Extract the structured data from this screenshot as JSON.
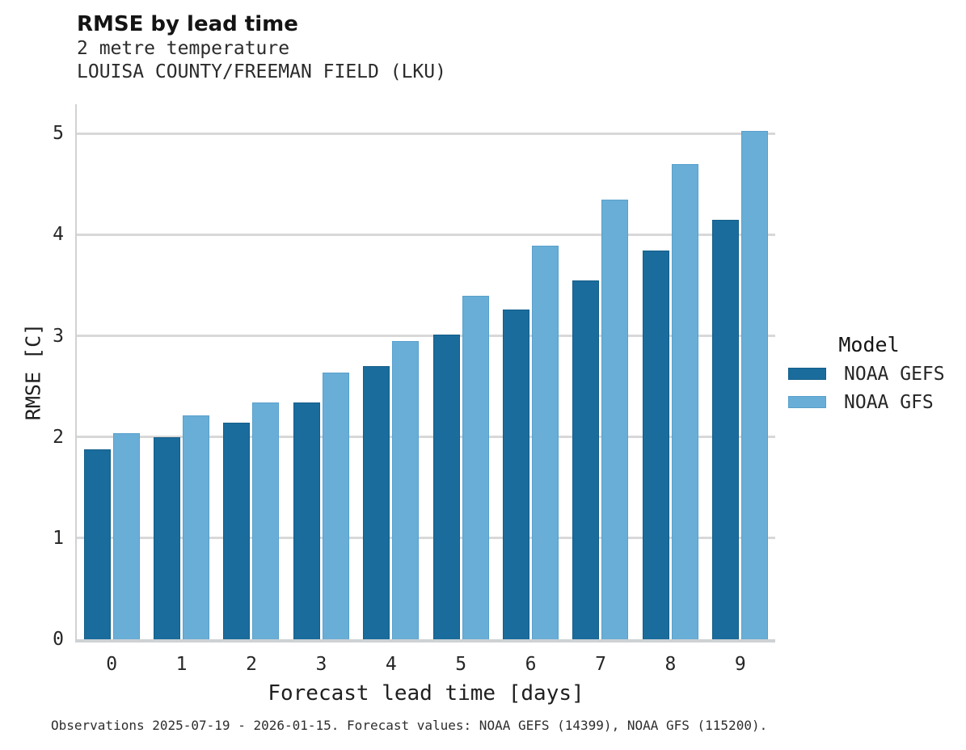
{
  "header": {
    "title": "RMSE by lead time",
    "subtitle": "2 metre temperature",
    "station": "LOUISA COUNTY/FREEMAN FIELD (LKU)"
  },
  "chart_data": {
    "type": "bar",
    "title": "RMSE by lead time",
    "subtitle": "2 metre temperature",
    "station": "LOUISA COUNTY/FREEMAN FIELD (LKU)",
    "categories": [
      0,
      1,
      2,
      3,
      4,
      5,
      6,
      7,
      8,
      9
    ],
    "series": [
      {
        "name": "NOAA GEFS",
        "color": "#1a6c9c",
        "edge_color": "#135e8a",
        "values": [
          1.88,
          2.0,
          2.14,
          2.34,
          2.7,
          3.01,
          3.26,
          3.55,
          3.84,
          4.15
        ]
      },
      {
        "name": "NOAA GFS",
        "color": "#69aed7",
        "edge_color": "#58a0cc",
        "values": [
          2.04,
          2.21,
          2.34,
          2.64,
          2.95,
          3.4,
          3.89,
          4.35,
          4.7,
          5.03
        ]
      }
    ],
    "xlabel": "Forecast lead time [days]",
    "ylabel": "RMSE [C]",
    "ylim": [
      0,
      5.29
    ],
    "yticks": [
      0,
      1,
      2,
      3,
      4,
      5
    ],
    "grid": true,
    "grid_color": "#d8d8d8",
    "legend_title": "Model",
    "legend_position": "right"
  },
  "legend": {
    "title": "Model",
    "items": [
      {
        "label": "NOAA GEFS",
        "color": "#1a6c9c",
        "edge_color": "#135e8a"
      },
      {
        "label": "NOAA GFS",
        "color": "#69aed7",
        "edge_color": "#58a0cc"
      }
    ]
  },
  "footer": {
    "note": "Observations 2025-07-19 - 2026-01-15. Forecast values: NOAA GEFS (14399), NOAA GFS (115200)."
  }
}
